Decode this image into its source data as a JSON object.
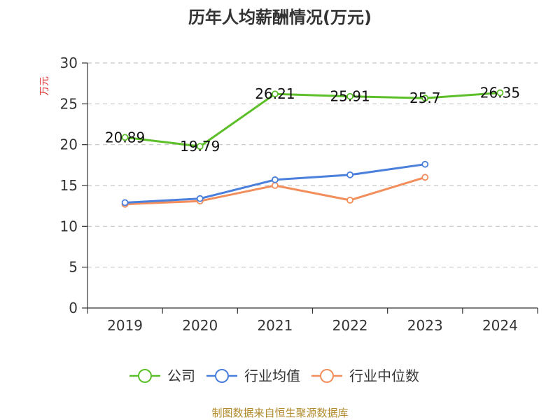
{
  "chart_data": {
    "type": "line",
    "title": "历年人均薪酬情况(万元)",
    "ylabel": "万元",
    "xlabel": "",
    "ylim": [
      0,
      30
    ],
    "yticks": [
      0,
      5,
      10,
      15,
      20,
      25,
      30
    ],
    "categories": [
      "2019",
      "2020",
      "2021",
      "2022",
      "2023",
      "2024"
    ],
    "grid": true,
    "legend_position": "bottom",
    "series": [
      {
        "name": "公司",
        "color": "#5cbf2a",
        "values": [
          20.89,
          19.79,
          26.21,
          25.91,
          25.7,
          26.35
        ],
        "data_labels": [
          "20.89",
          "19.79",
          "26.21",
          "25.91",
          "25.7",
          "26.35"
        ]
      },
      {
        "name": "行业均值",
        "color": "#4a7fdb",
        "values": [
          12.9,
          13.4,
          15.7,
          16.3,
          17.6,
          null
        ]
      },
      {
        "name": "行业中位数",
        "color": "#f28e5c",
        "values": [
          12.7,
          13.1,
          15.0,
          13.2,
          16.0,
          null
        ]
      }
    ]
  },
  "source_text": "制图数据来自恒生聚源数据库"
}
